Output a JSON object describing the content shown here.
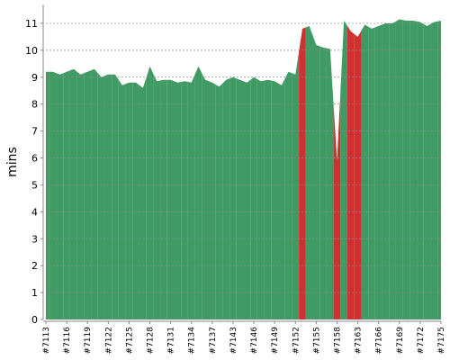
{
  "chart_data": {
    "type": "area",
    "y_label": "mins",
    "categories": [
      "#7113",
      null,
      null,
      "#7116",
      null,
      null,
      "#7119",
      null,
      null,
      "#7122",
      null,
      null,
      "#7125",
      null,
      null,
      "#7128",
      null,
      null,
      "#7131",
      null,
      null,
      "#7134",
      null,
      null,
      "#7137",
      null,
      null,
      "#7143",
      null,
      null,
      "#7146",
      null,
      null,
      "#7149",
      null,
      null,
      "#7152",
      null,
      null,
      "#7155",
      null,
      null,
      "#7158",
      null,
      null,
      "#7163",
      null,
      null,
      "#7166",
      null,
      null,
      "#7169",
      null,
      null,
      "#7172",
      null,
      null,
      "#7175"
    ],
    "values": [
      9.2,
      9.2,
      9.1,
      9.2,
      9.3,
      9.1,
      9.2,
      9.3,
      9.0,
      9.1,
      9.1,
      8.7,
      8.8,
      8.8,
      8.6,
      9.4,
      8.85,
      8.9,
      8.9,
      8.8,
      8.85,
      8.8,
      9.4,
      8.9,
      8.8,
      8.65,
      8.9,
      9.0,
      8.9,
      8.8,
      9.0,
      8.85,
      8.9,
      8.85,
      8.7,
      9.2,
      9.1,
      10.8,
      10.9,
      10.2,
      10.1,
      10.05,
      5.9,
      11.1,
      10.7,
      10.5,
      10.95,
      10.8,
      10.9,
      11.0,
      11.0,
      11.15,
      11.1,
      11.1,
      11.05,
      10.9,
      11.05,
      11.1
    ],
    "point_colors": [
      "#3f9a64",
      "#3f9a64",
      "#3f9a64",
      "#3f9a64",
      "#3f9a64",
      "#3f9a64",
      "#3f9a64",
      "#3f9a64",
      "#3f9a64",
      "#3f9a64",
      "#3f9a64",
      "#3f9a64",
      "#3f9a64",
      "#3f9a64",
      "#3f9a64",
      "#3f9a64",
      "#3f9a64",
      "#3f9a64",
      "#3f9a64",
      "#3f9a64",
      "#3f9a64",
      "#3f9a64",
      "#3f9a64",
      "#3f9a64",
      "#3f9a64",
      "#3f9a64",
      "#3f9a64",
      "#3f9a64",
      "#3f9a64",
      "#3f9a64",
      "#3f9a64",
      "#3f9a64",
      "#3f9a64",
      "#3f9a64",
      "#3f9a64",
      "#3f9a64",
      "#3f9a64",
      "#d0302f",
      "#3f9a64",
      "#3f9a64",
      "#3f9a64",
      "#3f9a64",
      "#d0302f",
      "#3f9a64",
      "#d0302f",
      "#d0302f",
      "#3f9a64",
      "#3f9a64",
      "#3f9a64",
      "#3f9a64",
      "#3f9a64",
      "#3f9a64",
      "#3f9a64",
      "#3f9a64",
      "#3f9a64",
      "#3f9a64",
      "#3f9a64",
      "#3f9a64"
    ],
    "ylim": [
      0,
      11.7
    ],
    "yticks": [
      0,
      1,
      2,
      3,
      4,
      5,
      6,
      7,
      8,
      9,
      10,
      11
    ],
    "grid": true
  }
}
